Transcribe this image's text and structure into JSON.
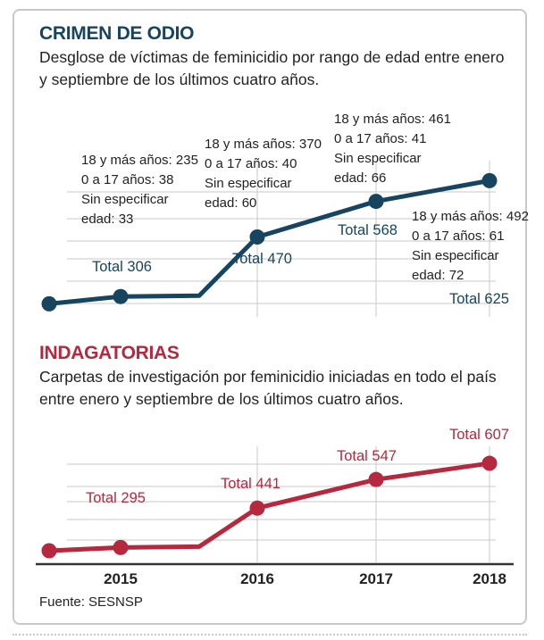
{
  "colors": {
    "blue": "#17445e",
    "red": "#b5283e",
    "grid": "#c9c9c9",
    "text": "#222222"
  },
  "chart_data": [
    {
      "type": "line",
      "title": "CRIMEN DE ODIO",
      "subtitle": "Desglose de víctimas de feminicidio por rango de edad entre enero y septiembre de los últimos cuatro años.",
      "x": [
        "2015",
        "2016",
        "2017",
        "2018"
      ],
      "series": [
        {
          "values": [
            306,
            470,
            568,
            625
          ]
        }
      ],
      "point_labels": [
        "Total 306",
        "Total 470",
        "Total 568",
        "Total 625"
      ],
      "breakdowns": [
        [
          "18 y más años: 235",
          "0 a 17 años: 38",
          "Sin especificar",
          "edad: 33"
        ],
        [
          "18 y más años: 370",
          "0 a 17 años: 40",
          "Sin especificar",
          "edad: 60"
        ],
        [
          "18 y más años: 461",
          "0 a 17 años: 41",
          "Sin especificar",
          "edad: 66"
        ],
        [
          "18 y más años: 492",
          "0 a 17 años: 61",
          "Sin especificar",
          "edad: 72"
        ]
      ],
      "grid": true,
      "color": "#17445e"
    },
    {
      "type": "line",
      "title": "INDAGATORIAS",
      "subtitle": "Carpetas de investigación por feminicidio iniciadas en todo el país entre enero y septiembre de los últimos cuatro años.",
      "x": [
        "2015",
        "2016",
        "2017",
        "2018"
      ],
      "series": [
        {
          "values": [
            295,
            441,
            547,
            607
          ]
        }
      ],
      "point_labels": [
        "Total 295",
        "Total 441",
        "Total 547",
        "Total 607"
      ],
      "grid": true,
      "color": "#b5283e"
    }
  ],
  "xaxis_labels": [
    "2015",
    "2016",
    "2017",
    "2018"
  ],
  "source": "Fuente: SESNSP"
}
